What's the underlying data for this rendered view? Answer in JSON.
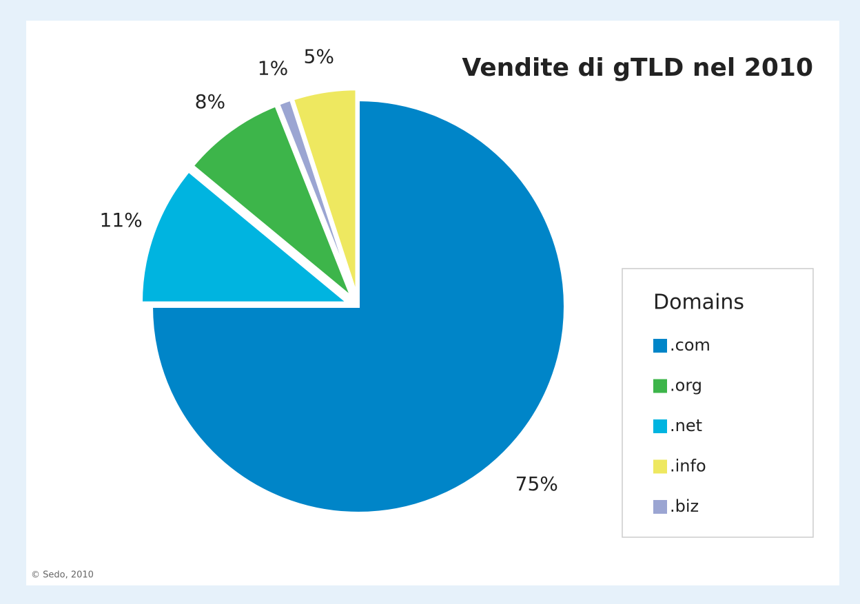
{
  "chart_data": {
    "type": "pie",
    "title": "Vendite di gTLD nel 2010",
    "legend_title": "Domains",
    "categories": [
      ".com",
      ".org",
      ".net",
      ".info",
      ".biz"
    ],
    "values": [
      75,
      8,
      11,
      5,
      1
    ],
    "value_labels": [
      "75%",
      "8%",
      "11%",
      "5%",
      "1%"
    ],
    "colors": [
      "#0085c8",
      "#3db54a",
      "#00b4e0",
      "#eee860",
      "#9ba5d2"
    ],
    "source": "© Sedo, 2010"
  }
}
